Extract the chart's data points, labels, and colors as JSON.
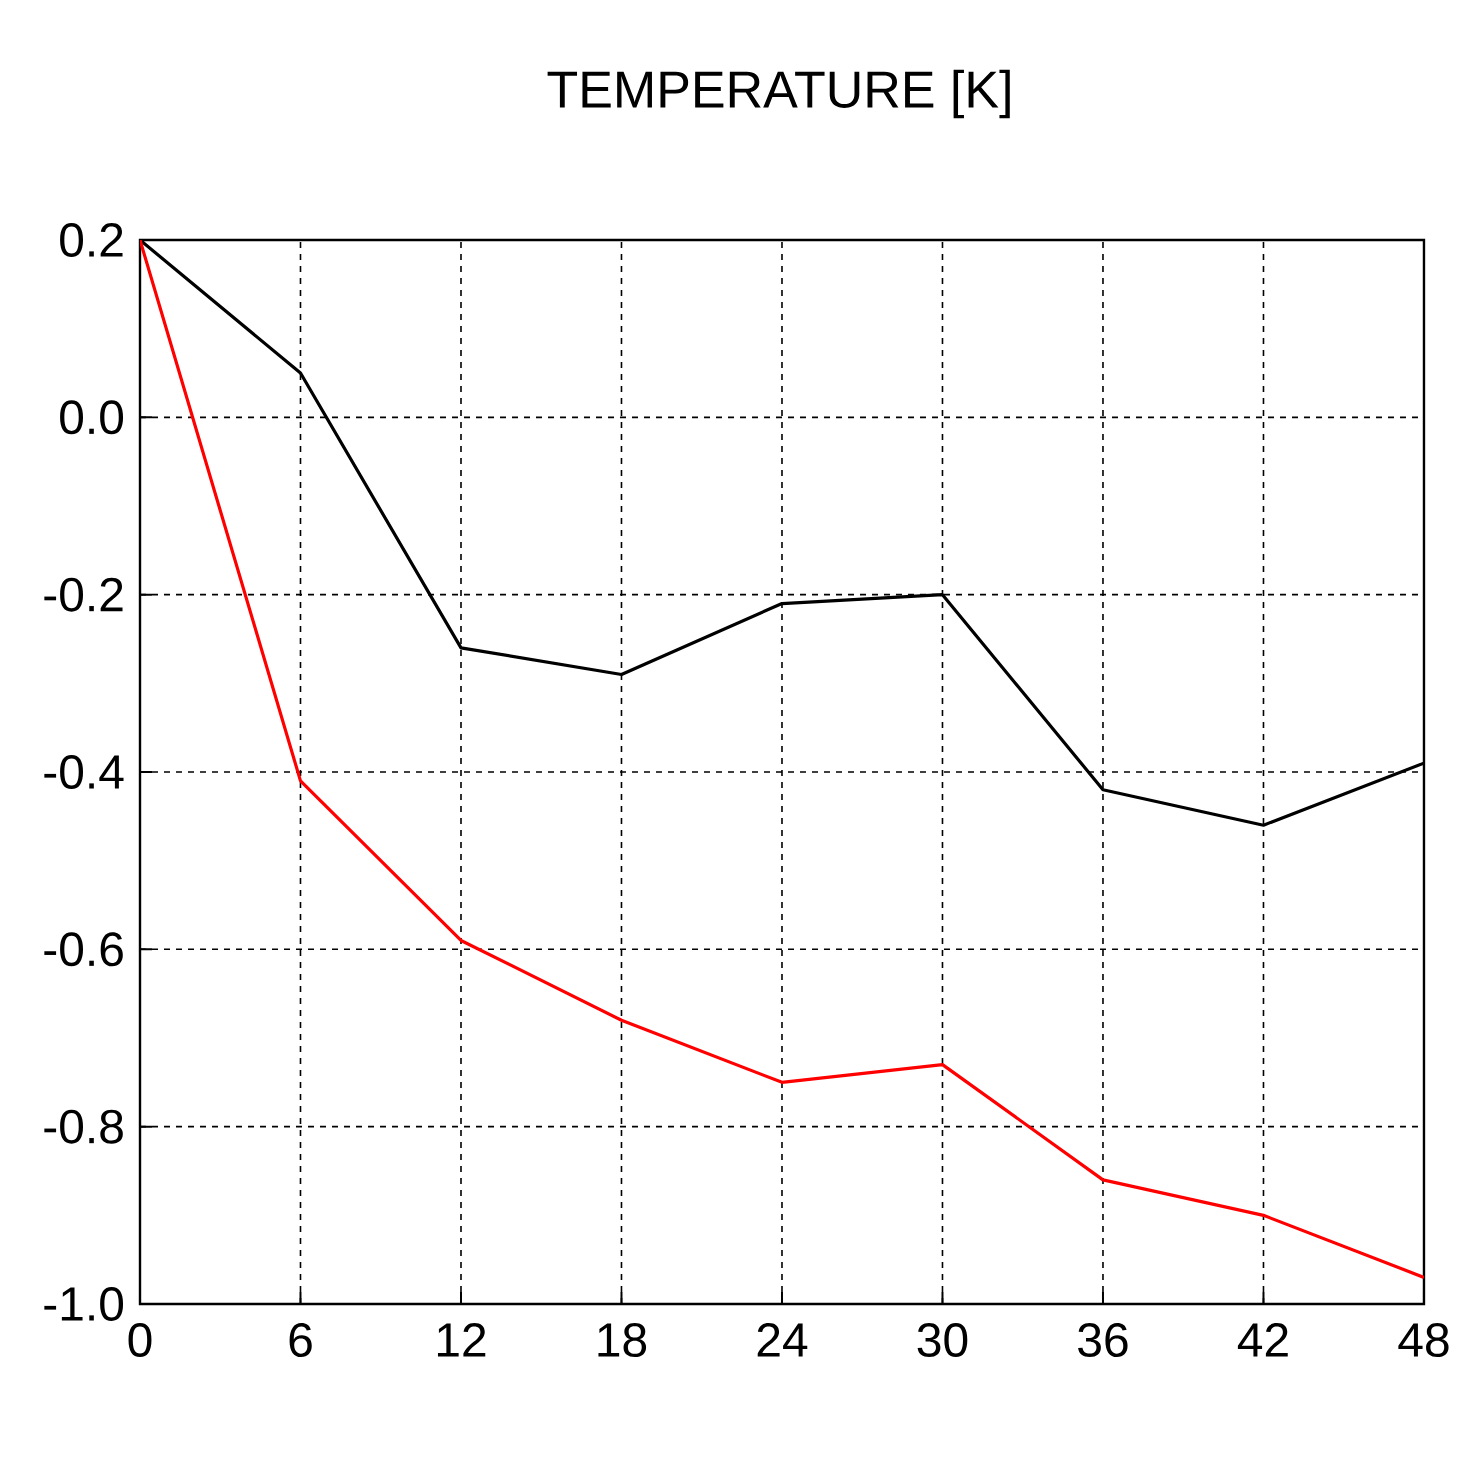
{
  "chart_data": {
    "type": "line",
    "title": "TEMPERATURE [K]",
    "x": [
      0,
      6,
      12,
      18,
      24,
      30,
      36,
      42,
      48
    ],
    "series": [
      {
        "color": "#000000",
        "values": [
          0.2,
          0.05,
          -0.26,
          -0.29,
          -0.21,
          -0.2,
          -0.42,
          -0.46,
          -0.39
        ]
      },
      {
        "color": "#ff0000",
        "values": [
          0.2,
          -0.41,
          -0.59,
          -0.68,
          -0.75,
          -0.73,
          -0.86,
          -0.9,
          -0.97
        ]
      }
    ],
    "xlim": [
      0,
      48
    ],
    "xticks": [
      0,
      6,
      12,
      18,
      24,
      30,
      36,
      42,
      48
    ],
    "ylim": [
      -1.0,
      0.2
    ],
    "yticks": [
      0.2,
      {
        "value": 0,
        "label": "0.0"
      },
      -0.2,
      -0.4,
      -0.6,
      -0.8,
      {
        "value": -1.0,
        "label": "-1.0"
      }
    ],
    "grid": true,
    "line_style": "solid"
  }
}
